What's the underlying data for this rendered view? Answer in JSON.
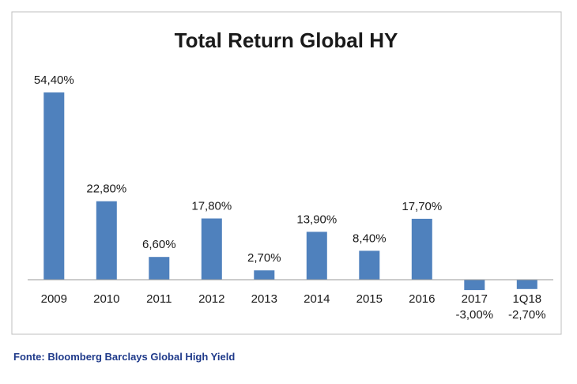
{
  "chart_data": {
    "type": "bar",
    "title": "Total Return Global HY",
    "categories": [
      "2009",
      "2010",
      "2011",
      "2012",
      "2013",
      "2014",
      "2015",
      "2016",
      "2017",
      "1Q18"
    ],
    "values": [
      54.4,
      22.8,
      6.6,
      17.8,
      2.7,
      13.9,
      8.4,
      17.7,
      -3.0,
      -2.7
    ],
    "data_labels": [
      "54,40%",
      "22,80%",
      "6,60%",
      "17,80%",
      "2,70%",
      "13,90%",
      "8,40%",
      "17,70%",
      "-3,00%",
      "-2,70%"
    ],
    "ylim": [
      -4,
      58
    ],
    "grid": false,
    "legend": "none",
    "bar_color": "#4f81bd"
  },
  "source": "Fonte: Bloomberg Barclays Global High Yield",
  "colors": {
    "source_text": "#1f3a8a",
    "frame": "#bfbfbf",
    "axis": "#9a9a9a"
  }
}
